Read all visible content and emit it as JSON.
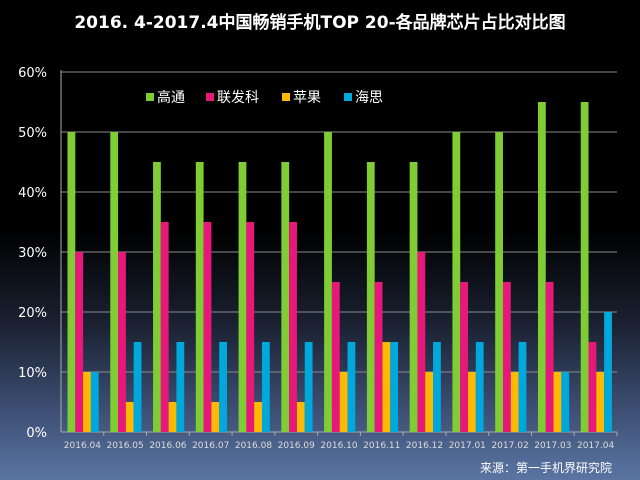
{
  "chart_data": {
    "type": "bar",
    "title": "2016. 4-2017.4中国畅销手机TOP 20-各品牌芯片占比对比图",
    "categories": [
      "2016.04",
      "2016.05",
      "2016.06",
      "2016.07",
      "2016.08",
      "2016.09",
      "2016.10",
      "2016.11",
      "2016.12",
      "2017.01",
      "2017.02",
      "2017.03",
      "2017.04"
    ],
    "series": [
      {
        "name": "高通",
        "color": "#7fcc34",
        "values": [
          50,
          50,
          45,
          45,
          45,
          45,
          50,
          45,
          45,
          50,
          50,
          55,
          55
        ]
      },
      {
        "name": "联发科",
        "color": "#e8177a",
        "values": [
          30,
          30,
          35,
          35,
          35,
          35,
          25,
          25,
          30,
          25,
          25,
          25,
          15
        ]
      },
      {
        "name": "苹果",
        "color": "#ffb900",
        "values": [
          10,
          5,
          5,
          5,
          5,
          5,
          10,
          15,
          10,
          10,
          10,
          10,
          10
        ]
      },
      {
        "name": "海思",
        "color": "#00a8dc",
        "values": [
          10,
          15,
          15,
          15,
          15,
          15,
          15,
          15,
          15,
          15,
          15,
          10,
          20
        ]
      }
    ],
    "yticks": [
      "0%",
      "10%",
      "20%",
      "30%",
      "40%",
      "50%",
      "60%"
    ],
    "ylim": [
      0,
      60
    ],
    "grid": true,
    "legend": "top-center",
    "xlabel": "",
    "ylabel": ""
  },
  "source": "来源：第一手机界研究院"
}
